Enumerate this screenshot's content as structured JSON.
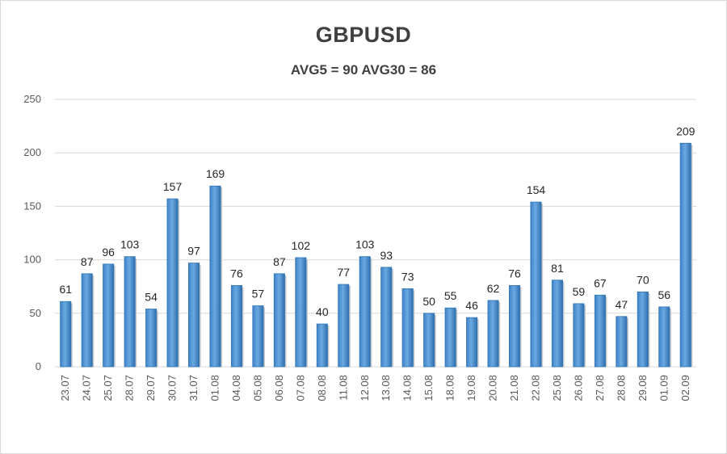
{
  "chart_data": {
    "type": "bar",
    "title": "GBPUSD",
    "subtitle": "AVG5 = 90 AVG30 = 86",
    "xlabel": "",
    "ylabel": "",
    "ylim": [
      0,
      250
    ],
    "yticks": [
      "0",
      "50",
      "100",
      "150",
      "200",
      "250"
    ],
    "grid": true,
    "legend": "none",
    "categories": [
      "23.07",
      "24.07",
      "25.07",
      "28.07",
      "29.07",
      "30.07",
      "31.07",
      "01.08",
      "04.08",
      "05.08",
      "06.08",
      "07.08",
      "08.08",
      "11.08",
      "12.08",
      "13.08",
      "14.08",
      "15.08",
      "18.08",
      "19.08",
      "20.08",
      "21.08",
      "22.08",
      "25.08",
      "26.08",
      "27.08",
      "28.08",
      "29.08",
      "01.09",
      "02.09"
    ],
    "values": [
      61,
      87,
      96,
      103,
      54,
      157,
      97,
      169,
      76,
      57,
      87,
      102,
      40,
      77,
      103,
      93,
      73,
      50,
      55,
      46,
      62,
      76,
      154,
      81,
      59,
      67,
      47,
      70,
      56,
      209
    ],
    "colors": {
      "bar": "#5b9bd5",
      "bar_dark": "#2e75b6",
      "grid": "#d9d9d9",
      "text": "#404040"
    }
  }
}
